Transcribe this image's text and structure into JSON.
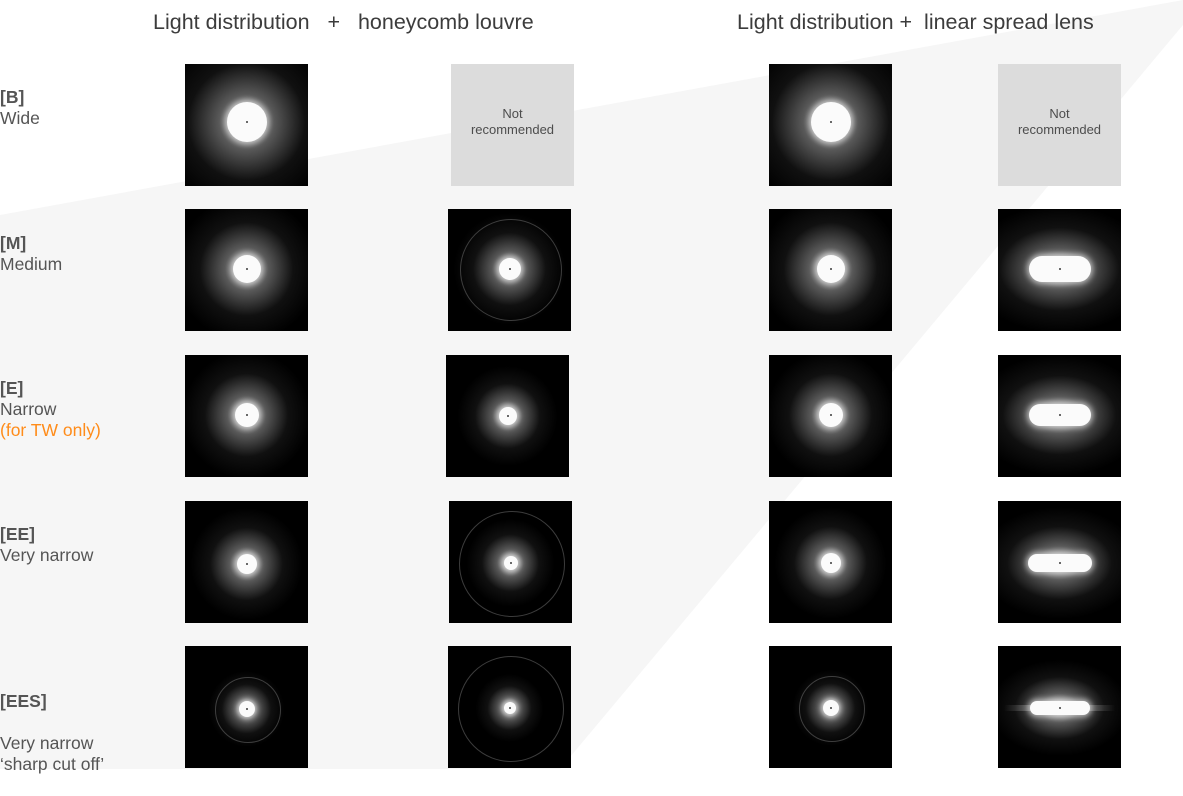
{
  "headers": {
    "col1": "Light distribution   +   honeycomb louvre",
    "col2": "Light distribution +  linear spread lens"
  },
  "rows": [
    {
      "code": "[B]",
      "name": "Wide",
      "note": ""
    },
    {
      "code": "[M]",
      "name": "Medium",
      "note": ""
    },
    {
      "code": "[E]",
      "name": "Narrow",
      "note": "(for TW only)"
    },
    {
      "code": "[EE]",
      "name": "Very narrow",
      "note": ""
    },
    {
      "code": "[EES]",
      "name": "Very narrow\n‘sharp cut off’",
      "note": ""
    }
  ],
  "tiles": {
    "not_recommended_text": "Not\nrecommended"
  },
  "colors": {
    "note": "#ff8c1a",
    "tile_background": "#000000",
    "not_recommended_background": "#dcdcdc"
  }
}
